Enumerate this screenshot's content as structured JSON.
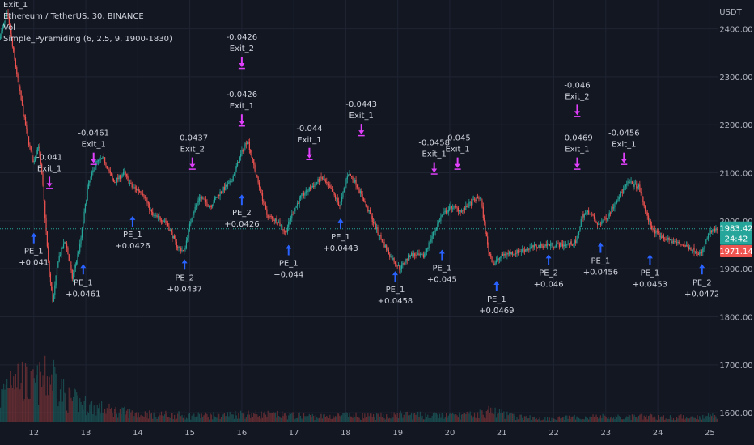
{
  "legend": {
    "line_exit": "Exit_1",
    "symbol": "Ethereum / TetherUS, 30, BINANCE",
    "line_vol": "Vol",
    "strategy": "Simple_Pyramiding (6, 2.5, 9, 1900-1830)"
  },
  "chart_data": {
    "type": "candlestick",
    "title": "Ethereum / TetherUS, 30, BINANCE",
    "currency": "USDT",
    "x_ticks": [
      "12",
      "13",
      "14",
      "15",
      "16",
      "17",
      "18",
      "19",
      "20",
      "21",
      "22",
      "23",
      "24",
      "25"
    ],
    "y_ticks": [
      2400,
      2300,
      2200,
      2100,
      2000,
      1900,
      1800,
      1700,
      1600
    ],
    "y_tick_labels": [
      "2400.00",
      "2300.00",
      "2200.00",
      "2100.00",
      "2000.00",
      "1900.00",
      "1800.00",
      "1700.00",
      "1600.00"
    ],
    "ylim": [
      1580,
      2460
    ],
    "xlim": [
      11.35,
      25.15
    ],
    "price_path": [
      [
        11.35,
        2380
      ],
      [
        11.5,
        2430
      ],
      [
        11.65,
        2330
      ],
      [
        11.8,
        2230
      ],
      [
        11.9,
        2170
      ],
      [
        12.0,
        2120
      ],
      [
        12.1,
        2160
      ],
      [
        12.18,
        2080
      ],
      [
        12.3,
        1900
      ],
      [
        12.38,
        1830
      ],
      [
        12.48,
        1920
      ],
      [
        12.62,
        1960
      ],
      [
        12.75,
        1880
      ],
      [
        12.9,
        1950
      ],
      [
        13.05,
        2070
      ],
      [
        13.2,
        2120
      ],
      [
        13.35,
        2130
      ],
      [
        13.55,
        2080
      ],
      [
        13.75,
        2100
      ],
      [
        13.9,
        2070
      ],
      [
        14.1,
        2060
      ],
      [
        14.3,
        2010
      ],
      [
        14.55,
        2000
      ],
      [
        14.75,
        1950
      ],
      [
        14.9,
        1935
      ],
      [
        15.05,
        2010
      ],
      [
        15.2,
        2050
      ],
      [
        15.4,
        2030
      ],
      [
        15.6,
        2060
      ],
      [
        15.8,
        2080
      ],
      [
        16.0,
        2140
      ],
      [
        16.12,
        2170
      ],
      [
        16.3,
        2090
      ],
      [
        16.5,
        2010
      ],
      [
        16.7,
        2000
      ],
      [
        16.85,
        1975
      ],
      [
        17.0,
        2020
      ],
      [
        17.15,
        2050
      ],
      [
        17.35,
        2070
      ],
      [
        17.55,
        2090
      ],
      [
        17.75,
        2060
      ],
      [
        17.9,
        2030
      ],
      [
        18.05,
        2100
      ],
      [
        18.2,
        2080
      ],
      [
        18.45,
        2020
      ],
      [
        18.65,
        1970
      ],
      [
        18.85,
        1930
      ],
      [
        19.05,
        1900
      ],
      [
        19.25,
        1930
      ],
      [
        19.5,
        1925
      ],
      [
        19.7,
        1975
      ],
      [
        19.85,
        2010
      ],
      [
        20.05,
        2030
      ],
      [
        20.25,
        2020
      ],
      [
        20.45,
        2040
      ],
      [
        20.6,
        2050
      ],
      [
        20.75,
        1940
      ],
      [
        20.85,
        1910
      ],
      [
        21.05,
        1930
      ],
      [
        21.3,
        1935
      ],
      [
        21.6,
        1945
      ],
      [
        21.9,
        1950
      ],
      [
        22.2,
        1950
      ],
      [
        22.45,
        1955
      ],
      [
        22.55,
        2010
      ],
      [
        22.7,
        2020
      ],
      [
        22.85,
        1990
      ],
      [
        23.05,
        2010
      ],
      [
        23.25,
        2050
      ],
      [
        23.45,
        2080
      ],
      [
        23.65,
        2070
      ],
      [
        23.8,
        2010
      ],
      [
        23.95,
        1975
      ],
      [
        24.2,
        1960
      ],
      [
        24.5,
        1950
      ],
      [
        24.7,
        1940
      ],
      [
        24.85,
        1930
      ],
      [
        25.0,
        1975
      ],
      [
        25.1,
        1980
      ]
    ],
    "volume_ylim": [
      0,
      600
    ],
    "volume_profile": [
      [
        11.35,
        120
      ],
      [
        11.6,
        300
      ],
      [
        11.9,
        180
      ],
      [
        12.2,
        220
      ],
      [
        12.38,
        250
      ],
      [
        12.6,
        130
      ],
      [
        13.0,
        90
      ],
      [
        13.5,
        60
      ],
      [
        14.0,
        45
      ],
      [
        14.5,
        40
      ],
      [
        15.0,
        35
      ],
      [
        15.5,
        35
      ],
      [
        16.0,
        45
      ],
      [
        16.5,
        40
      ],
      [
        17.0,
        35
      ],
      [
        17.5,
        30
      ],
      [
        18.0,
        35
      ],
      [
        18.5,
        30
      ],
      [
        19.0,
        40
      ],
      [
        19.5,
        35
      ],
      [
        20.0,
        35
      ],
      [
        20.5,
        40
      ],
      [
        20.8,
        60
      ],
      [
        21.2,
        30
      ],
      [
        21.8,
        20
      ],
      [
        22.4,
        25
      ],
      [
        22.8,
        30
      ],
      [
        23.3,
        25
      ],
      [
        23.8,
        30
      ],
      [
        24.3,
        25
      ],
      [
        24.8,
        30
      ],
      [
        25.1,
        35
      ]
    ],
    "current_price": 1983.42,
    "current_price_label": "1983.42",
    "countdown": "24:42",
    "second_price": 1971.14,
    "second_price_label": "1971.14",
    "hline_price": 1983.42,
    "markers": [
      {
        "kind": "entry",
        "x": 12.0,
        "y": 1975,
        "lines": [
          "PE_1",
          "+0.041"
        ]
      },
      {
        "kind": "entry",
        "x": 12.95,
        "y": 1910,
        "lines": [
          "PE_1",
          "+0.0461"
        ]
      },
      {
        "kind": "entry",
        "x": 13.9,
        "y": 2010,
        "lines": [
          "PE_1",
          "+0.0426"
        ]
      },
      {
        "kind": "entry",
        "x": 14.9,
        "y": 1920,
        "lines": [
          "PE_2",
          "+0.0437"
        ]
      },
      {
        "kind": "entry",
        "x": 16.0,
        "y": 2055,
        "lines": [
          "PE_2",
          "+0.0426"
        ]
      },
      {
        "kind": "entry",
        "x": 16.9,
        "y": 1950,
        "lines": [
          "PE_1",
          "+0.044"
        ]
      },
      {
        "kind": "entry",
        "x": 17.9,
        "y": 2005,
        "lines": [
          "PE_1",
          "+0.0443"
        ]
      },
      {
        "kind": "entry",
        "x": 18.95,
        "y": 1895,
        "lines": [
          "PE_1",
          "+0.0458"
        ]
      },
      {
        "kind": "entry",
        "x": 19.85,
        "y": 1940,
        "lines": [
          "PE_1",
          "+0.045"
        ]
      },
      {
        "kind": "entry",
        "x": 20.9,
        "y": 1875,
        "lines": [
          "PE_1",
          "+0.0469"
        ]
      },
      {
        "kind": "entry",
        "x": 21.9,
        "y": 1930,
        "lines": [
          "PE_2",
          "+0.046"
        ]
      },
      {
        "kind": "entry",
        "x": 22.9,
        "y": 1955,
        "lines": [
          "PE_1",
          "+0.0456"
        ]
      },
      {
        "kind": "entry",
        "x": 23.85,
        "y": 1930,
        "lines": [
          "PE_1",
          "+0.0453"
        ]
      },
      {
        "kind": "entry",
        "x": 24.85,
        "y": 1910,
        "lines": [
          "PE_2",
          "+0.0472"
        ]
      },
      {
        "kind": "exit",
        "x": 12.3,
        "y": 2070,
        "lines": [
          "-0.041",
          "Exit_1"
        ]
      },
      {
        "kind": "exit",
        "x": 13.15,
        "y": 2120,
        "lines": [
          "-0.0461",
          "Exit_1"
        ]
      },
      {
        "kind": "exit",
        "x": 15.05,
        "y": 2110,
        "lines": [
          "-0.0437",
          "Exit_2"
        ]
      },
      {
        "kind": "exit",
        "x": 16.0,
        "y": 2200,
        "lines": [
          "-0.0426",
          "Exit_1"
        ]
      },
      {
        "kind": "exit",
        "x": 16.0,
        "y": 2320,
        "lines": [
          "-0.0426",
          "Exit_2"
        ]
      },
      {
        "kind": "exit",
        "x": 17.3,
        "y": 2130,
        "lines": [
          "-0.044",
          "Exit_1"
        ]
      },
      {
        "kind": "exit",
        "x": 18.3,
        "y": 2180,
        "lines": [
          "-0.0443",
          "Exit_1"
        ]
      },
      {
        "kind": "exit",
        "x": 19.7,
        "y": 2100,
        "lines": [
          "-0.0458",
          "Exit_1"
        ]
      },
      {
        "kind": "exit",
        "x": 20.15,
        "y": 2110,
        "lines": [
          "-0.045",
          "Exit_1"
        ]
      },
      {
        "kind": "exit",
        "x": 22.45,
        "y": 2110,
        "lines": [
          "-0.0469",
          "Exit_1"
        ]
      },
      {
        "kind": "exit",
        "x": 22.45,
        "y": 2220,
        "lines": [
          "-0.046",
          "Exit_2"
        ]
      },
      {
        "kind": "exit",
        "x": 23.35,
        "y": 2120,
        "lines": [
          "-0.0456",
          "Exit_1"
        ]
      }
    ],
    "colors": {
      "background": "#131722",
      "grid": "#1f2433",
      "up": "#26a69a",
      "down": "#ef5350",
      "entry": "#2962ff",
      "exit": "#e040fb",
      "text": "#d1d4dc",
      "axis_text": "#b2b5be"
    }
  }
}
